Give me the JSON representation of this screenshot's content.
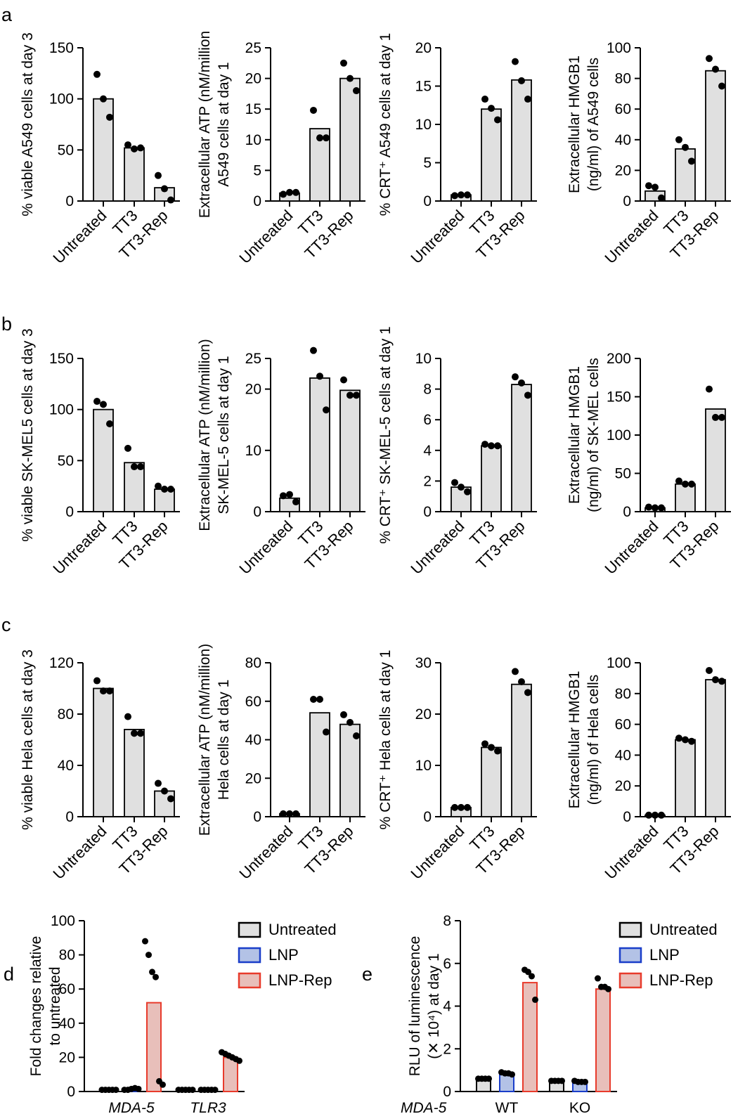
{
  "chart_data": [
    {
      "panel": "a",
      "type": "bar",
      "categories": [
        "Untreated",
        "TT3",
        "TT3-Rep"
      ],
      "ylabel": [
        "% viable A549 cells at day 3"
      ],
      "ylim": [
        0,
        150
      ],
      "ticks": [
        0,
        50,
        100,
        150
      ],
      "values": [
        100,
        52,
        13
      ],
      "points": [
        [
          124,
          100,
          82
        ],
        [
          55,
          51,
          52
        ],
        [
          25,
          12,
          1
        ]
      ]
    },
    {
      "type": "bar",
      "categories": [
        "Untreated",
        "TT3",
        "TT3-Rep"
      ],
      "ylabel": [
        "Extracellular ATP (nM/million",
        "A549 cells at day 1"
      ],
      "ylim": [
        0,
        25
      ],
      "ticks": [
        0,
        5,
        10,
        15,
        20,
        25
      ],
      "values": [
        1.3,
        11.8,
        20
      ],
      "points": [
        [
          1.1,
          1.4,
          1.4
        ],
        [
          14.8,
          10.3,
          10.3
        ],
        [
          22.5,
          20,
          18
        ]
      ]
    },
    {
      "type": "bar",
      "categories": [
        "Untreated",
        "TT3",
        "TT3-Rep"
      ],
      "ylabel": [
        "% CRT⁺ A549 cells at day 1"
      ],
      "ylim": [
        0,
        20
      ],
      "ticks": [
        0,
        5,
        10,
        15,
        20
      ],
      "values": [
        0.8,
        12,
        15.8
      ],
      "points": [
        [
          0.7,
          0.8,
          0.8
        ],
        [
          13.3,
          12.1,
          10.6
        ],
        [
          18.2,
          15.7,
          13.3
        ]
      ]
    },
    {
      "type": "bar",
      "categories": [
        "Untreated",
        "TT3",
        "TT3-Rep"
      ],
      "ylabel": [
        "Extracellular HMGB1",
        "(ng/ml) of A549 cells"
      ],
      "ylim": [
        0,
        100
      ],
      "ticks": [
        0,
        20,
        40,
        60,
        80,
        100
      ],
      "values": [
        6.5,
        34,
        85
      ],
      "points": [
        [
          10,
          9,
          2
        ],
        [
          40,
          35,
          26
        ],
        [
          93,
          86,
          75
        ]
      ]
    },
    {
      "panel": "b",
      "type": "bar",
      "categories": [
        "Untreated",
        "TT3",
        "TT3-Rep"
      ],
      "ylabel": [
        "% viable SK-MEL5 cells at day 3"
      ],
      "ylim": [
        0,
        150
      ],
      "ticks": [
        0,
        50,
        100,
        150
      ],
      "values": [
        100,
        48,
        22
      ],
      "points": [
        [
          108,
          105,
          86
        ],
        [
          62,
          44,
          44
        ],
        [
          25,
          22,
          22
        ]
      ]
    },
    {
      "type": "bar",
      "categories": [
        "Untreated",
        "TT3",
        "TT3-Rep"
      ],
      "ylabel": [
        "Extracellular ATP (nM/million)",
        "SK-MEL-5 cells at day 1"
      ],
      "ylim": [
        0,
        25
      ],
      "ticks": [
        0,
        10,
        20,
        25
      ],
      "values": [
        2.2,
        21.8,
        19.8
      ],
      "points": [
        [
          2.6,
          2.8,
          1.6
        ],
        [
          26.3,
          22.1,
          16.6
        ],
        [
          21.5,
          19,
          19
        ]
      ]
    },
    {
      "type": "bar",
      "categories": [
        "Untreated",
        "TT3",
        "TT3-Rep"
      ],
      "ylabel": [
        "% CRT⁺ SK-MEL-5 cells at day 1"
      ],
      "ylim": [
        0,
        10
      ],
      "ticks": [
        0,
        2,
        4,
        6,
        8,
        10
      ],
      "values": [
        1.6,
        4.3,
        8.3
      ],
      "points": [
        [
          1.9,
          1.6,
          1.3
        ],
        [
          4.4,
          4.3,
          4.3
        ],
        [
          8.8,
          8.4,
          7.6
        ]
      ]
    },
    {
      "type": "bar",
      "categories": [
        "Untreated",
        "TT3",
        "TT3-Rep"
      ],
      "ylabel": [
        "Extracellular HMGB1",
        "(ng/ml) of SK-MEL cells"
      ],
      "ylim": [
        0,
        200
      ],
      "ticks": [
        0,
        50,
        100,
        150,
        200
      ],
      "values": [
        5,
        36,
        134
      ],
      "points": [
        [
          6,
          5,
          5
        ],
        [
          40,
          36,
          36
        ],
        [
          160,
          123,
          123
        ]
      ]
    },
    {
      "panel": "c",
      "type": "bar",
      "categories": [
        "Untreated",
        "TT3",
        "TT3-Rep"
      ],
      "ylabel": [
        "% viable Hela cells at day 3"
      ],
      "ylim": [
        0,
        120
      ],
      "ticks": [
        0,
        40,
        80,
        120
      ],
      "values": [
        100,
        68,
        20
      ],
      "points": [
        [
          106,
          98,
          98
        ],
        [
          78,
          65,
          65
        ],
        [
          26,
          20,
          14
        ]
      ]
    },
    {
      "type": "bar",
      "categories": [
        "Untreated",
        "TT3",
        "TT3-Rep"
      ],
      "ylabel": [
        "Extracellular ATP (nM/million)",
        "Hela cells at day 1"
      ],
      "ylim": [
        0,
        80
      ],
      "ticks": [
        0,
        20,
        40,
        60,
        80
      ],
      "values": [
        1.5,
        54,
        48
      ],
      "points": [
        [
          1.5,
          1.5,
          1.5
        ],
        [
          61,
          61,
          44
        ],
        [
          53,
          49,
          42
        ]
      ]
    },
    {
      "type": "bar",
      "categories": [
        "Untreated",
        "TT3",
        "TT3-Rep"
      ],
      "ylabel": [
        "% CRT⁺ Hela cells at day 1"
      ],
      "ylim": [
        0,
        30
      ],
      "ticks": [
        0,
        10,
        20,
        30
      ],
      "values": [
        1.8,
        13.5,
        25.8
      ],
      "points": [
        [
          1.8,
          1.8,
          1.8
        ],
        [
          14.2,
          13.5,
          12.8
        ],
        [
          28.3,
          26.3,
          24.2
        ]
      ]
    },
    {
      "type": "bar",
      "categories": [
        "Untreated",
        "TT3",
        "TT3-Rep"
      ],
      "ylabel": [
        "Extracellular HMGB1",
        "(ng/ml) of Hela cells"
      ],
      "ylim": [
        0,
        100
      ],
      "ticks": [
        0,
        20,
        40,
        60,
        80,
        100
      ],
      "values": [
        1,
        50,
        89
      ],
      "points": [
        [
          1,
          1,
          1
        ],
        [
          51,
          50,
          49
        ],
        [
          95,
          89,
          88
        ]
      ]
    },
    {
      "panel": "d",
      "type": "grouped-bar",
      "groups": [
        "MDA-5",
        "TLR3"
      ],
      "ylabel": [
        "Fold changes relative",
        "to untreated"
      ],
      "ylim": [
        0,
        100
      ],
      "ticks": [
        0,
        20,
        40,
        60,
        80,
        100
      ],
      "series": [
        {
          "name": "Untreated",
          "color": "#e0e0e0",
          "border": "#000000",
          "values": [
            1,
            1
          ],
          "points": [
            [
              1,
              1,
              1,
              1,
              1
            ],
            [
              1,
              1,
              1,
              1,
              1
            ]
          ]
        },
        {
          "name": "LNP",
          "color": "#b3c2e6",
          "border": "#1a3ec9",
          "values": [
            1.5,
            1
          ],
          "points": [
            [
              1,
              1,
              1.5,
              2,
              1.5
            ],
            [
              1,
              1,
              1,
              1,
              1
            ]
          ]
        },
        {
          "name": "LNP-Rep",
          "color": "#e8bfba",
          "border": "#e83b2c",
          "values": [
            52,
            20
          ],
          "points": [
            [
              88,
              80,
              70,
              67,
              6,
              4
            ],
            [
              23,
              22,
              21,
              20,
              19,
              18
            ]
          ]
        }
      ],
      "legend": [
        "Untreated",
        "LNP",
        "LNP-Rep"
      ]
    },
    {
      "panel": "e",
      "type": "grouped-bar",
      "groups": [
        "WT",
        "KO"
      ],
      "group_label": "MDA-5",
      "ylabel": [
        "RLU of luminescence",
        "(✕ 10⁴) at day 1"
      ],
      "ylim": [
        0,
        8
      ],
      "ticks": [
        0,
        2,
        4,
        6,
        8
      ],
      "series": [
        {
          "name": "Untreated",
          "color": "#e0e0e0",
          "border": "#000000",
          "values": [
            0.6,
            0.5
          ],
          "points": [
            [
              0.6,
              0.6,
              0.6,
              0.6
            ],
            [
              0.5,
              0.5,
              0.5,
              0.5
            ]
          ]
        },
        {
          "name": "LNP",
          "color": "#b3c2e6",
          "border": "#1a3ec9",
          "values": [
            0.85,
            0.45
          ],
          "points": [
            [
              0.9,
              0.85,
              0.85,
              0.8
            ],
            [
              0.5,
              0.45,
              0.45,
              0.45
            ]
          ]
        },
        {
          "name": "LNP-Rep",
          "color": "#e8bfba",
          "border": "#e83b2c",
          "values": [
            5.1,
            4.8
          ],
          "points": [
            [
              5.7,
              5.6,
              5.4,
              4.3
            ],
            [
              5.3,
              4.9,
              4.9,
              4.8
            ]
          ]
        }
      ],
      "legend": [
        "Untreated",
        "LNP",
        "LNP-Rep"
      ]
    }
  ]
}
